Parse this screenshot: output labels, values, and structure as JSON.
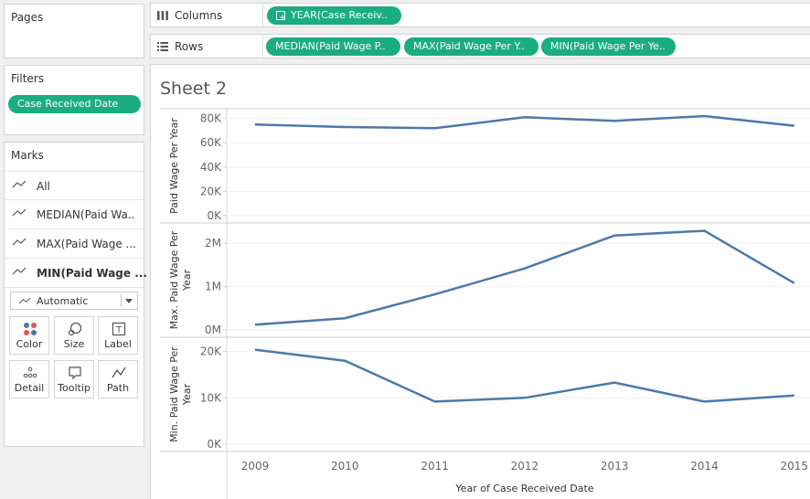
{
  "pages": {
    "title": "Pages"
  },
  "filters": {
    "title": "Filters",
    "pills": [
      "Case Received Date"
    ]
  },
  "marks": {
    "title": "Marks",
    "items": [
      {
        "label": "All",
        "bold": false
      },
      {
        "label": "MEDIAN(Paid Wa..",
        "bold": false
      },
      {
        "label": "MAX(Paid Wage ...",
        "bold": false
      },
      {
        "label": "MIN(Paid Wage ...",
        "bold": true
      }
    ],
    "mark_type": "Automatic",
    "cards": [
      {
        "label": "Color",
        "icon": "color-icon"
      },
      {
        "label": "Size",
        "icon": "size-icon"
      },
      {
        "label": "Label",
        "icon": "label-icon"
      },
      {
        "label": "Detail",
        "icon": "detail-icon"
      },
      {
        "label": "Tooltip",
        "icon": "tooltip-icon"
      },
      {
        "label": "Path",
        "icon": "path-icon"
      }
    ]
  },
  "shelves": {
    "columns_label": "Columns",
    "columns_pills": [
      "YEAR(Case Receiv.."
    ],
    "rows_label": "Rows",
    "rows_pills": [
      "MEDIAN(Paid Wage P..",
      "MAX(Paid Wage Per Y..",
      "MIN(Paid Wage Per Ye.."
    ]
  },
  "sheet": {
    "title": "Sheet 2"
  },
  "colors": {
    "line": "#4e79a7",
    "pill": "#1aad7f"
  },
  "chart_data": {
    "type": "line",
    "x": [
      "2009",
      "2010",
      "2011",
      "2012",
      "2013",
      "2014",
      "2015"
    ],
    "xlabel": "Year of Case Received Date",
    "panes": [
      {
        "ylabel": "Paid Wage Per Year",
        "yticks": [
          "0K",
          "20K",
          "40K",
          "60K",
          "80K"
        ],
        "ylim": [
          0,
          85000
        ],
        "values": [
          75000,
          73000,
          72000,
          81000,
          78000,
          82000,
          74000
        ]
      },
      {
        "ylabel": "Max. Paid Wage Per Year",
        "yticks": [
          "0M",
          "1M",
          "2M"
        ],
        "ylim": [
          0,
          2300000
        ],
        "values": [
          120000,
          270000,
          820000,
          1420000,
          2180000,
          2290000,
          1080000
        ]
      },
      {
        "ylabel": "Min. Paid Wage Per Year",
        "yticks": [
          "0K",
          "10K",
          "20K"
        ],
        "ylim": [
          0,
          21500
        ],
        "values": [
          20400,
          18000,
          9200,
          10000,
          13300,
          9200,
          10500
        ]
      }
    ]
  }
}
